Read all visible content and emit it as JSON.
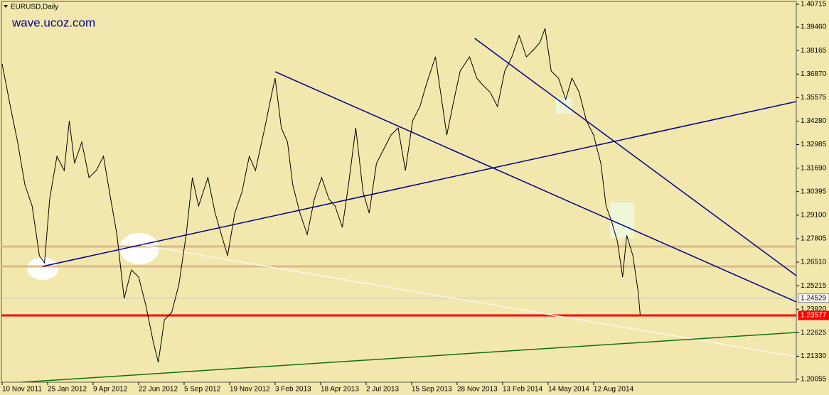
{
  "chart_data": {
    "type": "line",
    "title": "EURUSD,Daily",
    "subtitle": "wave.ucoz.com",
    "background": "#f2e8ad",
    "xlim": [
      0,
      768
    ],
    "ylim": [
      1.20055,
      1.40715
    ],
    "yticks": [
      1.40715,
      {
        "value": 1.3946,
        "label": "1.39460"
      },
      1.38165,
      {
        "value": 1.3687,
        "label": "1.36870"
      },
      1.35575,
      {
        "value": 1.3428,
        "label": "1.34280"
      },
      1.32985,
      {
        "value": 1.3169,
        "label": "1.31690"
      },
      1.30395,
      {
        "value": 1.291,
        "label": "1.29100"
      },
      1.27805,
      {
        "value": 1.2651,
        "label": "1.26510"
      },
      1.25215,
      {
        "value": 1.2392,
        "label": "1.23920"
      },
      1.22625,
      {
        "value": 1.2133,
        "label": "1.21330"
      },
      1.20055
    ],
    "xticks": [
      {
        "value": 0,
        "label": "10 Nov 2011"
      },
      {
        "value": 44,
        "label": "25 Jan 2012"
      },
      {
        "value": 88,
        "label": "9 Apr 2012"
      },
      {
        "value": 132,
        "label": "22 Jun 2012"
      },
      {
        "value": 176,
        "label": "5 Sep 2012"
      },
      {
        "value": 220,
        "label": "19 Nov 2012"
      },
      {
        "value": 264,
        "label": "3 Feb 2013"
      },
      {
        "value": 308,
        "label": "18 Apr 2013"
      },
      {
        "value": 352,
        "label": "2 Jul 2013"
      },
      {
        "value": 396,
        "label": "15 Sep 2013"
      },
      {
        "value": 440,
        "label": "28 Nov 2013"
      },
      {
        "value": 484,
        "label": "13 Feb 2014"
      },
      {
        "value": 528,
        "label": "14 May 2014"
      },
      {
        "value": 572,
        "label": "12 Aug 2014"
      }
    ],
    "series": [
      {
        "name": "EURUSD",
        "color": "#000000",
        "x": [
          0,
          8,
          15,
          22,
          29,
          36,
          41,
          46,
          53,
          60,
          65,
          70,
          77,
          84,
          91,
          98,
          105,
          111,
          118,
          125,
          132,
          139,
          146,
          151,
          157,
          164,
          171,
          178,
          184,
          190,
          199,
          206,
          212,
          218,
          225,
          232,
          239,
          245,
          254,
          261,
          264,
          270,
          276,
          281,
          288,
          295,
          302,
          309,
          316,
          322,
          329,
          335,
          342,
          349,
          355,
          362,
          369,
          376,
          383,
          390,
          397,
          404,
          410,
          419,
          424,
          430,
          437,
          443,
          452,
          459,
          465,
          472,
          479,
          486,
          493,
          500,
          507,
          514,
          520,
          525,
          531,
          538,
          545,
          551,
          558,
          565,
          572,
          579,
          584,
          589,
          595,
          600,
          604,
          610,
          615,
          617
        ],
        "values": [
          1.37428,
          1.3508,
          1.33124,
          1.30776,
          1.29602,
          1.26863,
          1.26472,
          1.29994,
          1.32341,
          1.31559,
          1.34298,
          1.3195,
          1.33124,
          1.31168,
          1.31559,
          1.32341,
          1.29994,
          1.28037,
          1.24516,
          1.26081,
          1.2569,
          1.24124,
          1.22168,
          1.20994,
          1.23342,
          1.23733,
          1.25298,
          1.28037,
          1.31168,
          1.29602,
          1.31168,
          1.29211,
          1.28037,
          1.26863,
          1.29211,
          1.30385,
          1.32341,
          1.31559,
          1.33907,
          1.35863,
          1.36646,
          1.33907,
          1.33124,
          1.30776,
          1.29211,
          1.28037,
          1.29994,
          1.31168,
          1.29994,
          1.29602,
          1.28429,
          1.30776,
          1.33907,
          1.30385,
          1.29211,
          1.3195,
          1.32733,
          1.33512,
          1.33907,
          1.31559,
          1.34298,
          1.3508,
          1.36254,
          1.37819,
          1.35863,
          1.33512,
          1.35472,
          1.37037,
          1.37819,
          1.36646,
          1.36254,
          1.35863,
          1.3508,
          1.37037,
          1.37819,
          1.38993,
          1.37819,
          1.38211,
          1.38602,
          1.39385,
          1.37037,
          1.36646,
          1.35472,
          1.36646,
          1.35863,
          1.34298,
          1.33512,
          1.3195,
          1.29602,
          1.2882,
          1.27646,
          1.2569,
          1.27985,
          1.26863,
          1.24907,
          1.2362
        ]
      }
    ],
    "trendlines": [
      {
        "color": "#00008b",
        "x": [
          39,
          768
        ],
        "values": [
          1.26276,
          1.35354
        ]
      },
      {
        "color": "#00008b",
        "x": [
          264,
          768
        ],
        "values": [
          1.36998,
          1.2432
        ]
      },
      {
        "color": "#00008b",
        "x": [
          457,
          768
        ],
        "values": [
          1.38837,
          1.25768
        ]
      },
      {
        "color": "#fff6ee",
        "x": [
          135,
          768
        ],
        "values": [
          1.2745,
          1.21307
        ]
      },
      {
        "color": "#107010",
        "x": [
          19,
          768
        ],
        "values": [
          1.19898,
          1.22638
        ]
      }
    ],
    "levels": [
      {
        "value": 1.27372,
        "color": "#dcb98a"
      },
      {
        "value": 1.26276,
        "color": "#dcb98a"
      },
      {
        "value": 1.24529,
        "label": "1.24529",
        "color": "#c0c0c0"
      },
      {
        "value": 1.23577,
        "label": "1.23577",
        "color": "#ff0000"
      }
    ]
  }
}
